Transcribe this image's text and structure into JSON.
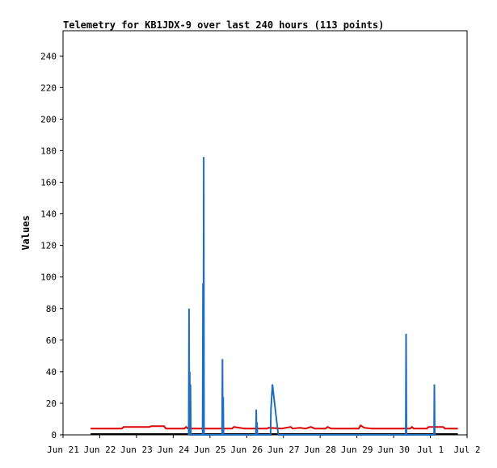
{
  "chart_data": {
    "type": "line",
    "title": "Telemetry for KB1JDX-9 over last 240 hours (113 points)",
    "xlabel": "",
    "ylabel": "Values",
    "xlim": [
      0,
      11
    ],
    "ylim": [
      0,
      256
    ],
    "x_tick_labels": [
      "Jun 21",
      "Jun 22",
      "Jun 23",
      "Jun 24",
      "Jun 25",
      "Jun 26",
      "Jun 27",
      "Jun 28",
      "Jun 29",
      "Jun 30",
      "Jul 1",
      "Jul 2"
    ],
    "y_ticks": [
      0,
      20,
      40,
      60,
      80,
      100,
      120,
      140,
      160,
      180,
      200,
      220,
      240
    ],
    "grid": false,
    "legend": "none",
    "series": [
      {
        "color": "#000000",
        "points": [
          [
            0.75,
            0.5
          ],
          [
            10.75,
            0.5
          ]
        ]
      },
      {
        "color": "#e00000",
        "points": [
          [
            0.75,
            4
          ],
          [
            1.6,
            4
          ],
          [
            1.65,
            5
          ],
          [
            2.35,
            5
          ],
          [
            2.4,
            5.5
          ],
          [
            2.75,
            5.5
          ],
          [
            2.8,
            4
          ],
          [
            3.3,
            4
          ],
          [
            3.35,
            5
          ],
          [
            3.4,
            4
          ],
          [
            4.6,
            4
          ],
          [
            4.65,
            5
          ],
          [
            4.8,
            4.5
          ],
          [
            4.95,
            4
          ],
          [
            5.55,
            4
          ],
          [
            5.6,
            4.5
          ],
          [
            5.95,
            4
          ],
          [
            6.2,
            5
          ],
          [
            6.25,
            4
          ],
          [
            6.45,
            4.5
          ],
          [
            6.6,
            4
          ],
          [
            6.75,
            5
          ],
          [
            6.85,
            4
          ],
          [
            7.15,
            4
          ],
          [
            7.2,
            5
          ],
          [
            7.3,
            4
          ],
          [
            8.05,
            4
          ],
          [
            8.1,
            6
          ],
          [
            8.2,
            4.5
          ],
          [
            8.4,
            4
          ],
          [
            9.45,
            4
          ],
          [
            9.5,
            5
          ],
          [
            9.55,
            4
          ],
          [
            9.9,
            4
          ],
          [
            9.95,
            5
          ],
          [
            10.35,
            5
          ],
          [
            10.4,
            4
          ],
          [
            10.75,
            4
          ]
        ]
      },
      {
        "color": "#1f6ebf",
        "points": [
          [
            3.42,
            0
          ],
          [
            3.43,
            80
          ],
          [
            3.44,
            0
          ],
          [
            3.45,
            40
          ],
          [
            3.46,
            0
          ],
          [
            3.47,
            32
          ],
          [
            3.48,
            0
          ],
          [
            3.8,
            0
          ],
          [
            3.81,
            96
          ],
          [
            3.82,
            0
          ],
          [
            3.83,
            176
          ],
          [
            3.84,
            0
          ],
          [
            4.33,
            0
          ],
          [
            4.34,
            48
          ],
          [
            4.35,
            0
          ],
          [
            4.36,
            24
          ],
          [
            4.37,
            0
          ],
          [
            5.25,
            0
          ],
          [
            5.26,
            16
          ],
          [
            5.27,
            0
          ],
          [
            5.28,
            8
          ],
          [
            5.29,
            0
          ],
          [
            5.65,
            0
          ],
          [
            5.66,
            16
          ],
          [
            5.7,
            32
          ],
          [
            5.74,
            24
          ],
          [
            5.78,
            16
          ],
          [
            5.82,
            8
          ],
          [
            5.86,
            0
          ],
          [
            9.33,
            0
          ],
          [
            9.34,
            64
          ],
          [
            9.35,
            0
          ],
          [
            10.1,
            0
          ],
          [
            10.11,
            32
          ],
          [
            10.12,
            0
          ]
        ]
      }
    ]
  }
}
